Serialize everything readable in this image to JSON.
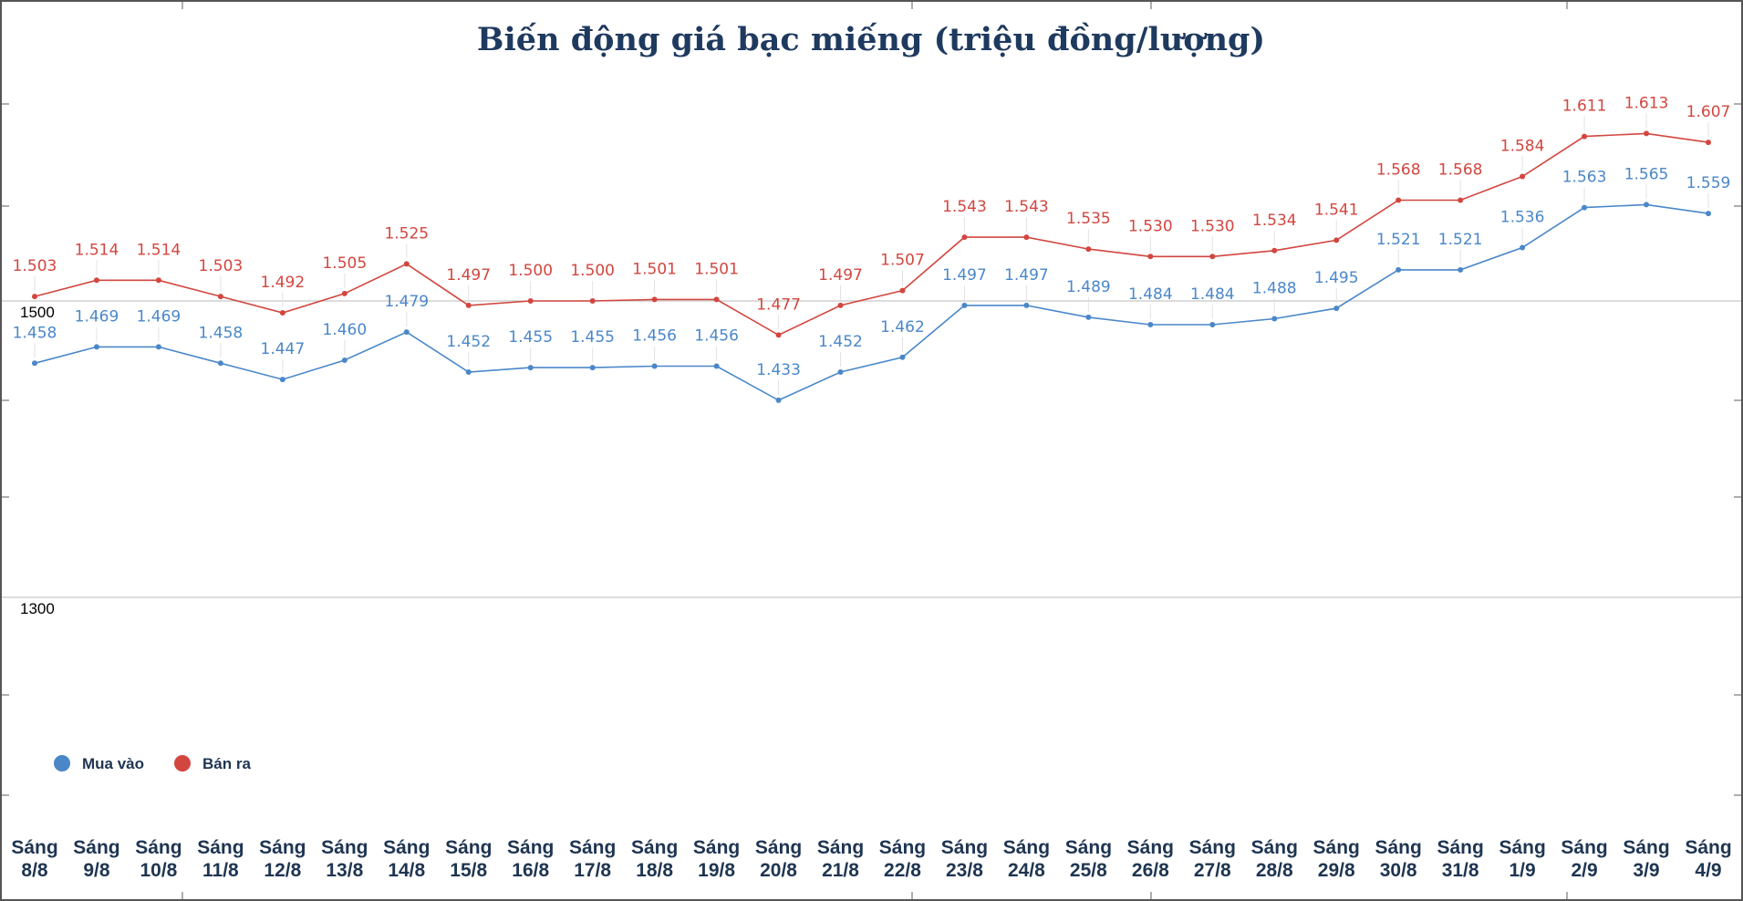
{
  "chart_data": {
    "type": "line",
    "title": "Biến động giá bạc miếng (triệu đồng/lượng)",
    "categories": [
      "Sáng 8/8",
      "Sáng 9/8",
      "Sáng 10/8",
      "Sáng 11/8",
      "Sáng 12/8",
      "Sáng 13/8",
      "Sáng 14/8",
      "Sáng 15/8",
      "Sáng 16/8",
      "Sáng 17/8",
      "Sáng 18/8",
      "Sáng 19/8",
      "Sáng 20/8",
      "Sáng 21/8",
      "Sáng 22/8",
      "Sáng 23/8",
      "Sáng 24/8",
      "Sáng 25/8",
      "Sáng 26/8",
      "Sáng 27/8",
      "Sáng 28/8",
      "Sáng 29/8",
      "Sáng 30/8",
      "Sáng 31/8",
      "Sáng 1/9",
      "Sáng 2/9",
      "Sáng 3/9",
      "Sáng 4/9"
    ],
    "series": [
      {
        "name": "Mua vào",
        "color": "#4a87c9",
        "values": [
          1458,
          1469,
          1469,
          1458,
          1447,
          1460,
          1479,
          1452,
          1455,
          1455,
          1456,
          1456,
          1433,
          1452,
          1462,
          1497,
          1497,
          1489,
          1484,
          1484,
          1488,
          1495,
          1521,
          1521,
          1536,
          1563,
          1565,
          1559
        ],
        "labels": [
          "1.458",
          "1.469",
          "1.469",
          "1.458",
          "1.447",
          "1.460",
          "1.479",
          "1.452",
          "1.455",
          "1.455",
          "1.456",
          "1.456",
          "1.433",
          "1.452",
          "1.462",
          "1.497",
          "1.497",
          "1.489",
          "1.484",
          "1.484",
          "1.488",
          "1.495",
          "1.521",
          "1.521",
          "1.536",
          "1.563",
          "1.565",
          "1.559"
        ]
      },
      {
        "name": "Bán ra",
        "color": "#d2463f",
        "values": [
          1503,
          1514,
          1514,
          1503,
          1492,
          1505,
          1525,
          1497,
          1500,
          1500,
          1501,
          1501,
          1477,
          1497,
          1507,
          1543,
          1543,
          1535,
          1530,
          1530,
          1534,
          1541,
          1568,
          1568,
          1584,
          1611,
          1613,
          1607
        ],
        "labels": [
          "1.503",
          "1.514",
          "1.514",
          "1.503",
          "1.492",
          "1.505",
          "1.525",
          "1.497",
          "1.500",
          "1.500",
          "1.501",
          "1.501",
          "1.477",
          "1.497",
          "1.507",
          "1.543",
          "1.543",
          "1.535",
          "1.530",
          "1.530",
          "1.534",
          "1.541",
          "1.568",
          "1.568",
          "1.584",
          "1.611",
          "1.613",
          "1.607"
        ]
      }
    ],
    "y_ticks": [
      1500,
      1300
    ],
    "ylim": [
      1200,
      1700
    ],
    "grid": true,
    "legend_position": "bottom-left"
  }
}
